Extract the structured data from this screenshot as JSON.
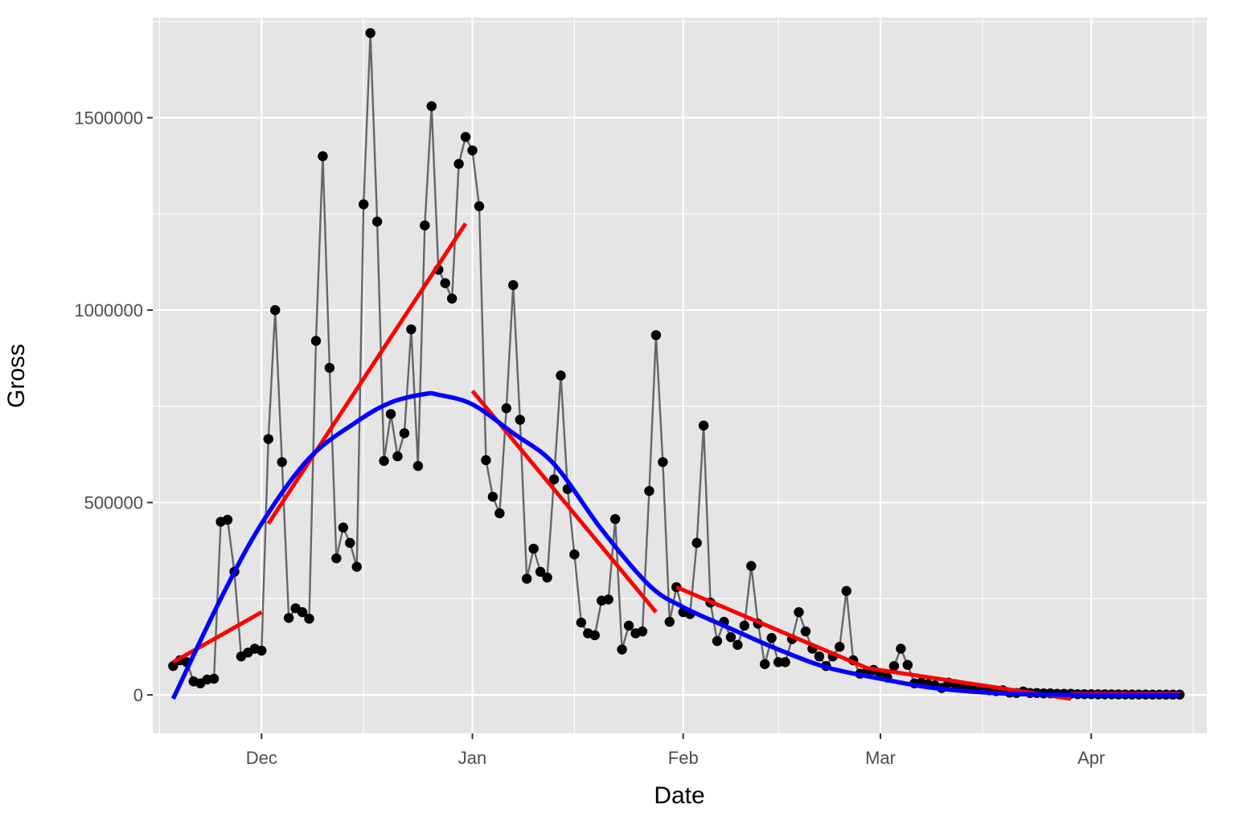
{
  "chart_data": {
    "type": "line",
    "xlabel": "Date",
    "ylabel": "Gross",
    "x_axis": {
      "kind": "date",
      "range": [
        "2023-11-15",
        "2024-04-18"
      ],
      "major_ticks": [
        {
          "date": "2023-12-01",
          "label": "Dec"
        },
        {
          "date": "2024-01-01",
          "label": "Jan"
        },
        {
          "date": "2024-02-01",
          "label": "Feb"
        },
        {
          "date": "2024-03-01",
          "label": "Mar"
        },
        {
          "date": "2024-04-01",
          "label": "Apr"
        }
      ],
      "minor_gridlines": [
        "2023-11-16",
        "2023-12-16",
        "2024-01-16",
        "2024-02-15",
        "2024-03-16",
        "2024-04-16"
      ]
    },
    "y_axis": {
      "range": [
        -100000,
        1760000
      ],
      "major_ticks": [
        0,
        500000,
        1000000,
        1500000
      ],
      "tick_labels": [
        "0",
        "500000",
        "1000000",
        "1500000"
      ],
      "minor_gridlines": [
        250000,
        750000,
        1250000,
        1750000
      ]
    },
    "grid": true,
    "legend": "none",
    "colors": {
      "panel": "#e5e5e5",
      "grid": "#ffffff",
      "points": "#000000",
      "connecting_line": "#666666",
      "segment_fits": "#ff0000",
      "overall_smooth": "#0000ff"
    },
    "series": [
      {
        "style": "points+line",
        "x": [
          "2023-11-18",
          "2023-11-19",
          "2023-11-20",
          "2023-11-21",
          "2023-11-22",
          "2023-11-23",
          "2023-11-24",
          "2023-11-25",
          "2023-11-26",
          "2023-11-27",
          "2023-11-28",
          "2023-11-29",
          "2023-11-30",
          "2023-12-01",
          "2023-12-02",
          "2023-12-03",
          "2023-12-04",
          "2023-12-05",
          "2023-12-06",
          "2023-12-07",
          "2023-12-08",
          "2023-12-09",
          "2023-12-10",
          "2023-12-11",
          "2023-12-12",
          "2023-12-13",
          "2023-12-14",
          "2023-12-15",
          "2023-12-16",
          "2023-12-17",
          "2023-12-18",
          "2023-12-19",
          "2023-12-20",
          "2023-12-21",
          "2023-12-22",
          "2023-12-23",
          "2023-12-24",
          "2023-12-25",
          "2023-12-26",
          "2023-12-27",
          "2023-12-28",
          "2023-12-29",
          "2023-12-30",
          "2023-12-31",
          "2024-01-01",
          "2024-01-02",
          "2024-01-03",
          "2024-01-04",
          "2024-01-05",
          "2024-01-06",
          "2024-01-07",
          "2024-01-08",
          "2024-01-09",
          "2024-01-10",
          "2024-01-11",
          "2024-01-12",
          "2024-01-13",
          "2024-01-14",
          "2024-01-15",
          "2024-01-16",
          "2024-01-17",
          "2024-01-18",
          "2024-01-19",
          "2024-01-20",
          "2024-01-21",
          "2024-01-22",
          "2024-01-23",
          "2024-01-24",
          "2024-01-25",
          "2024-01-26",
          "2024-01-27",
          "2024-01-28",
          "2024-01-29",
          "2024-01-30",
          "2024-01-31",
          "2024-02-01",
          "2024-02-02",
          "2024-02-03",
          "2024-02-04",
          "2024-02-05",
          "2024-02-06",
          "2024-02-07",
          "2024-02-08",
          "2024-02-09",
          "2024-02-10",
          "2024-02-11",
          "2024-02-12",
          "2024-02-13",
          "2024-02-14",
          "2024-02-15",
          "2024-02-16",
          "2024-02-17",
          "2024-02-18",
          "2024-02-19",
          "2024-02-20",
          "2024-02-21",
          "2024-02-22",
          "2024-02-23",
          "2024-02-24",
          "2024-02-25",
          "2024-02-26",
          "2024-02-27",
          "2024-02-28",
          "2024-02-29",
          "2024-03-01",
          "2024-03-02",
          "2024-03-03",
          "2024-03-04",
          "2024-03-05",
          "2024-03-06",
          "2024-03-07",
          "2024-03-08",
          "2024-03-09",
          "2024-03-10",
          "2024-03-11",
          "2024-03-12",
          "2024-03-13",
          "2024-03-14",
          "2024-03-15",
          "2024-03-16",
          "2024-03-17",
          "2024-03-18",
          "2024-03-19",
          "2024-03-20",
          "2024-03-21",
          "2024-03-22",
          "2024-03-23",
          "2024-03-24",
          "2024-03-25",
          "2024-03-26",
          "2024-03-27",
          "2024-03-28",
          "2024-03-29",
          "2024-03-30",
          "2024-03-31",
          "2024-04-01",
          "2024-04-02",
          "2024-04-03",
          "2024-04-04",
          "2024-04-05",
          "2024-04-06",
          "2024-04-07",
          "2024-04-08",
          "2024-04-09",
          "2024-04-10",
          "2024-04-11",
          "2024-04-12",
          "2024-04-13",
          "2024-04-14"
        ],
        "y": [
          75000,
          90000,
          85000,
          35000,
          30000,
          40000,
          42000,
          450000,
          455000,
          320000,
          100000,
          110000,
          120000,
          115000,
          665000,
          1000000,
          605000,
          200000,
          225000,
          215000,
          198000,
          920000,
          1400000,
          850000,
          355000,
          435000,
          395000,
          333000,
          1275000,
          1720000,
          1230000,
          608000,
          730000,
          620000,
          680000,
          950000,
          595000,
          1220000,
          1530000,
          1105000,
          1070000,
          1030000,
          1380000,
          1450000,
          1415000,
          1270000,
          610000,
          515000,
          472000,
          745000,
          1065000,
          715000,
          302000,
          380000,
          320000,
          305000,
          560000,
          830000,
          535000,
          365000,
          188000,
          160000,
          155000,
          245000,
          248000,
          457000,
          118000,
          180000,
          160000,
          165000,
          530000,
          935000,
          605000,
          190000,
          280000,
          215000,
          210000,
          395000,
          700000,
          240000,
          140000,
          190000,
          150000,
          130000,
          180000,
          335000,
          185000,
          80000,
          148000,
          85000,
          85000,
          145000,
          215000,
          165000,
          120000,
          100000,
          75000,
          100000,
          125000,
          270000,
          90000,
          55000,
          60000,
          65000,
          50000,
          45000,
          75000,
          120000,
          78000,
          30000,
          32000,
          28000,
          25000,
          18000,
          32000,
          28000,
          20000,
          20000,
          15000,
          15000,
          12000,
          10000,
          12000,
          6000,
          5000,
          9000,
          5000,
          5000,
          4000,
          4000,
          3000,
          3000,
          3000,
          2000,
          2000,
          1800,
          1500,
          1500,
          1400,
          1300,
          1200,
          1100,
          1000,
          1000,
          900,
          900,
          800,
          800,
          700
        ]
      },
      {
        "style": "fit-line",
        "role": "segment fit",
        "segments": [
          {
            "x": [
              "2023-11-18",
              "2023-12-01"
            ],
            "y": [
              85000,
              215000
            ]
          },
          {
            "x": [
              "2023-12-02",
              "2023-12-31"
            ],
            "y": [
              445000,
              1225000
            ]
          },
          {
            "x": [
              "2024-01-01",
              "2024-01-28"
            ],
            "y": [
              790000,
              215000
            ]
          },
          {
            "x": [
              "2024-01-31",
              "2024-02-28"
            ],
            "y": [
              280000,
              70000
            ]
          },
          {
            "x": [
              "2024-02-28",
              "2024-03-29"
            ],
            "y": [
              70000,
              -10000
            ]
          },
          {
            "x": [
              "2024-03-29",
              "2024-04-14"
            ],
            "y": [
              3000,
              3000
            ]
          }
        ]
      },
      {
        "style": "smooth-line",
        "role": "overall smooth",
        "x": [
          "2023-11-18",
          "2023-11-25",
          "2023-12-01",
          "2023-12-08",
          "2023-12-15",
          "2023-12-20",
          "2023-12-25",
          "2023-12-27",
          "2024-01-01",
          "2024-01-07",
          "2024-01-13",
          "2024-01-20",
          "2024-01-27",
          "2024-02-01",
          "2024-02-08",
          "2024-02-15",
          "2024-02-22",
          "2024-03-01",
          "2024-03-08",
          "2024-03-15",
          "2024-03-22",
          "2024-04-01",
          "2024-04-14"
        ],
        "y": [
          -10000,
          250000,
          445000,
          615000,
          710000,
          760000,
          782000,
          780000,
          755000,
          680000,
          600000,
          430000,
          285000,
          228000,
          172000,
          118000,
          72000,
          42000,
          20000,
          8000,
          2000,
          0,
          0
        ]
      }
    ]
  }
}
